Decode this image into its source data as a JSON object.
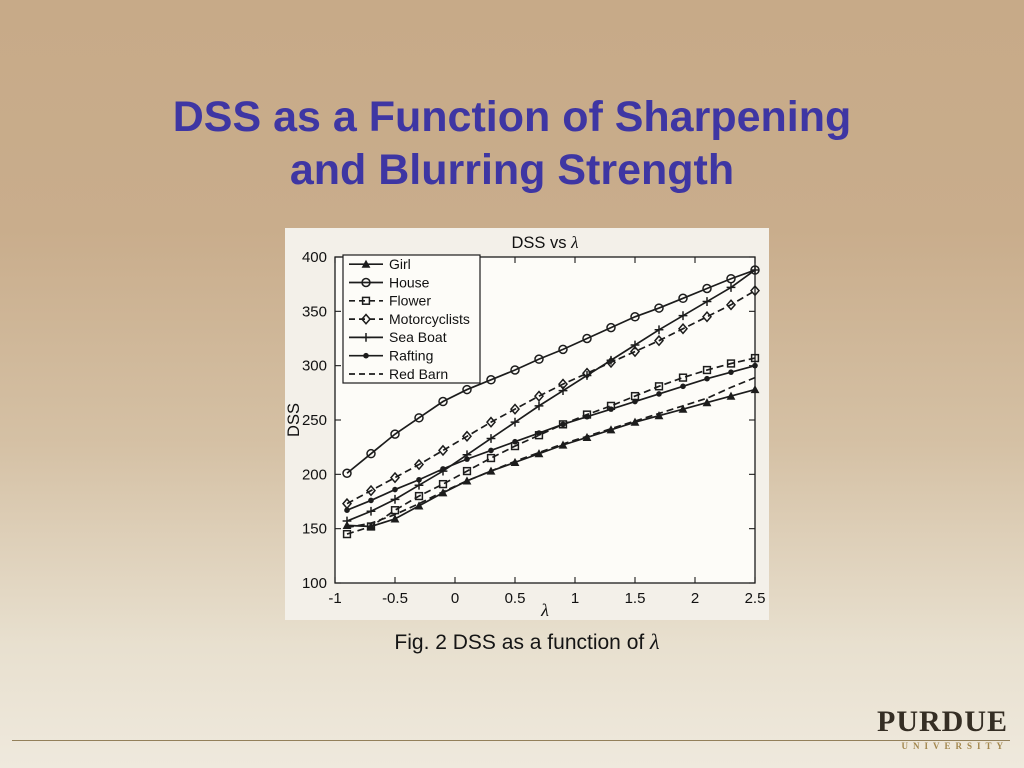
{
  "theme": {
    "bg_top": "#c7aa88",
    "bg_bottom": "#efe9dd",
    "title_color": "#3e36a3",
    "chart_bg": "#f3f0e9",
    "plot_bg": "#fdfcf8",
    "footer_rule": "#93805a",
    "wordmark_color": "#352e24",
    "university_color": "#a3874e"
  },
  "slide": {
    "title_line1": "DSS as a Function of Sharpening",
    "title_line2": "and Blurring Strength",
    "caption_prefix": "Fig. 2 DSS as a function of ",
    "caption_symbol": "λ"
  },
  "footer": {
    "wordmark": "PURDUE",
    "university": "UNIVERSITY"
  },
  "chart_data": {
    "type": "line",
    "title_main": "DSS vs ",
    "title_symbol": "λ",
    "xlabel": "λ",
    "ylabel": "DSS",
    "xlim": [
      -1,
      2.5
    ],
    "ylim": [
      100,
      400
    ],
    "xticks": [
      -1,
      -0.5,
      0,
      0.5,
      1,
      1.5,
      2,
      2.5
    ],
    "yticks": [
      100,
      150,
      200,
      250,
      300,
      350,
      400
    ],
    "grid": false,
    "legend_position": "top-left",
    "line_color": "#1c1c1c",
    "x": [
      -0.9,
      -0.7,
      -0.5,
      -0.3,
      -0.1,
      0.1,
      0.3,
      0.5,
      0.7,
      0.9,
      1.1,
      1.3,
      1.5,
      1.7,
      1.9,
      2.1,
      2.3,
      2.5
    ],
    "series": [
      {
        "name": "Girl",
        "marker": "triangle-filled",
        "line": "solid",
        "values": [
          153,
          152,
          159,
          171,
          183,
          194,
          203,
          211,
          219,
          227,
          234,
          241,
          248,
          254,
          260,
          266,
          272,
          278
        ]
      },
      {
        "name": "House",
        "marker": "circle-open",
        "line": "solid",
        "values": [
          201,
          219,
          237,
          252,
          267,
          278,
          287,
          296,
          306,
          315,
          325,
          335,
          345,
          353,
          362,
          371,
          380,
          388
        ]
      },
      {
        "name": "Flower",
        "marker": "square-open",
        "line": "dashed",
        "values": [
          145,
          152,
          167,
          180,
          191,
          203,
          215,
          226,
          236,
          246,
          255,
          263,
          272,
          281,
          289,
          296,
          302,
          307
        ]
      },
      {
        "name": "Motorcyclists",
        "marker": "diamond-open",
        "line": "dashed",
        "values": [
          173,
          185,
          197,
          209,
          222,
          235,
          248,
          260,
          272,
          283,
          293,
          303,
          313,
          323,
          334,
          345,
          356,
          369
        ]
      },
      {
        "name": "Sea Boat",
        "marker": "plus",
        "line": "solid",
        "values": [
          157,
          166,
          177,
          190,
          203,
          218,
          233,
          248,
          263,
          277,
          291,
          305,
          319,
          333,
          346,
          359,
          372,
          388
        ]
      },
      {
        "name": "Rafting",
        "marker": "dot-filled",
        "line": "solid",
        "values": [
          167,
          176,
          186,
          195,
          205,
          214,
          222,
          230,
          238,
          246,
          253,
          260,
          267,
          274,
          281,
          288,
          294,
          300
        ]
      },
      {
        "name": "Red Barn",
        "marker": "none",
        "line": "dashed",
        "values": [
          151,
          155,
          163,
          173,
          184,
          194,
          203,
          212,
          220,
          228,
          235,
          242,
          249,
          256,
          263,
          270,
          280,
          289
        ]
      }
    ]
  }
}
